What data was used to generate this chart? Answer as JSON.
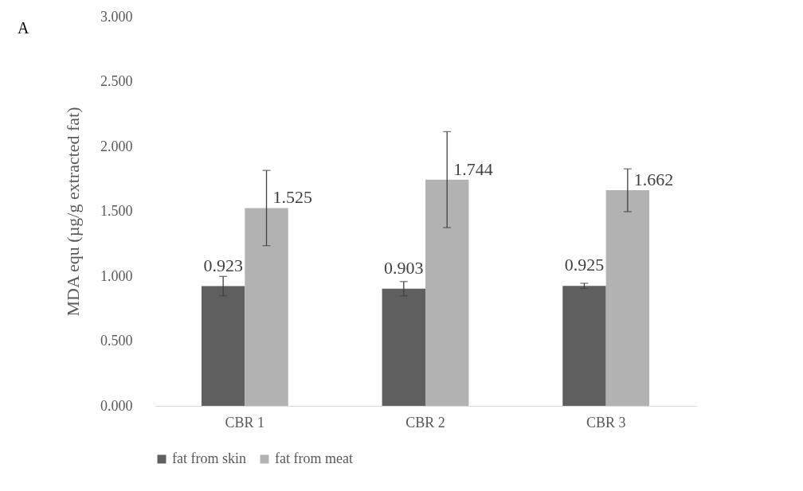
{
  "chart_data": {
    "type": "bar",
    "ylabel": "MDA equ (µg/g extracted fat)",
    "annotations": [
      "A"
    ],
    "categories": [
      "CBR 1",
      "CBR 2",
      "CBR 3"
    ],
    "series": [
      {
        "name": "fat from skin",
        "color": "#5f5f5f",
        "values": [
          0.923,
          0.903,
          0.925
        ],
        "errors": [
          0.075,
          0.055,
          0.02
        ]
      },
      {
        "name": "fat from meat",
        "color": "#b2b2b2",
        "values": [
          1.525,
          1.744,
          1.662
        ],
        "errors": [
          0.29,
          0.37,
          0.165
        ]
      }
    ],
    "ylim": [
      0,
      3
    ],
    "yticks": [
      {
        "value": 0,
        "label": "0.000"
      },
      {
        "value": 0.5,
        "label": "0.500"
      },
      {
        "value": 1,
        "label": "1.000"
      },
      {
        "value": 1.5,
        "label": "1.500"
      },
      {
        "value": 2,
        "label": "2.000"
      },
      {
        "value": 2.5,
        "label": "2.500"
      },
      {
        "value": 3,
        "label": "3.000"
      }
    ],
    "data_labels": true,
    "legend": "bottom",
    "grid": false
  }
}
